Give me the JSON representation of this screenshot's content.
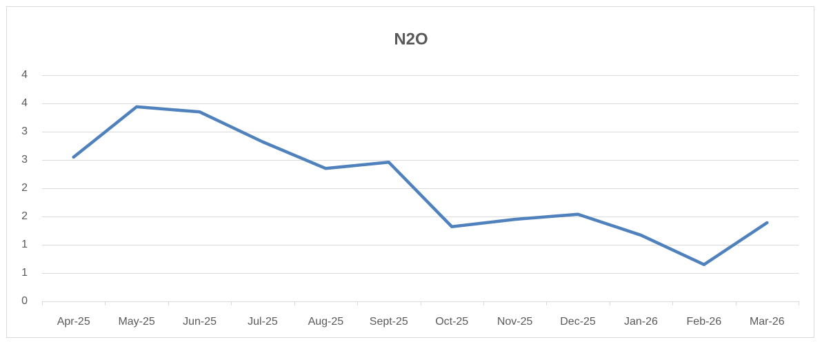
{
  "chart_data": {
    "type": "line",
    "title": "N2O",
    "categories": [
      "Apr-25",
      "May-25",
      "Jun-25",
      "Jul-25",
      "Aug-25",
      "Sept-25",
      "Oct-25",
      "Nov-25",
      "Dec-25",
      "Jan-26",
      "Feb-26",
      "Mar-26"
    ],
    "series": [
      {
        "name": "N2O",
        "color": "#4f81bd",
        "values": [
          2.55,
          3.44,
          3.35,
          2.82,
          2.35,
          2.46,
          1.32,
          1.45,
          1.54,
          1.17,
          0.65,
          1.39
        ]
      }
    ],
    "ylim": [
      0,
      4
    ],
    "yticks": [
      0,
      {
        "value": 0.5,
        "label": "1"
      },
      1,
      {
        "value": 1.5,
        "label": "2"
      },
      2,
      {
        "value": 2.5,
        "label": "3"
      },
      3,
      {
        "value": 3.5,
        "label": "4"
      },
      4
    ],
    "grid": true
  }
}
